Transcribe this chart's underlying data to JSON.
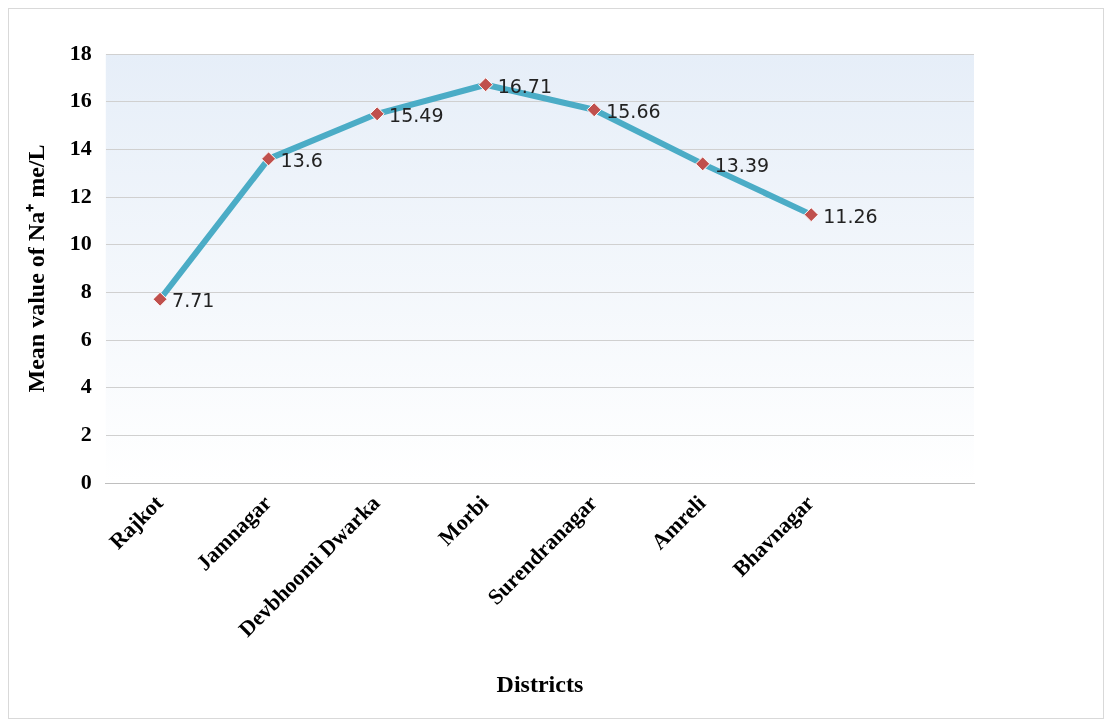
{
  "chart_data": {
    "type": "line",
    "xlabel": "Districts",
    "ylabel": "Mean value of Na⁺ me/L",
    "categories": [
      "Rajkot",
      "Jamnagar",
      "Devbhoomi Dwarka",
      "Morbi",
      "Surendranagar",
      "Amreli",
      "Bhavnagar",
      null
    ],
    "series": [
      {
        "color": "#4bacc6",
        "values": [
          7.71,
          13.6,
          15.49,
          16.71,
          15.66,
          13.39,
          11.26,
          null
        ]
      }
    ],
    "marker": "diamond",
    "line_style": "solid",
    "ylim": [
      0,
      18
    ],
    "yticks": [
      0,
      2,
      4,
      6,
      8,
      10,
      12,
      14,
      16,
      18
    ],
    "grid": "y",
    "data_labels": true,
    "legend": false
  }
}
